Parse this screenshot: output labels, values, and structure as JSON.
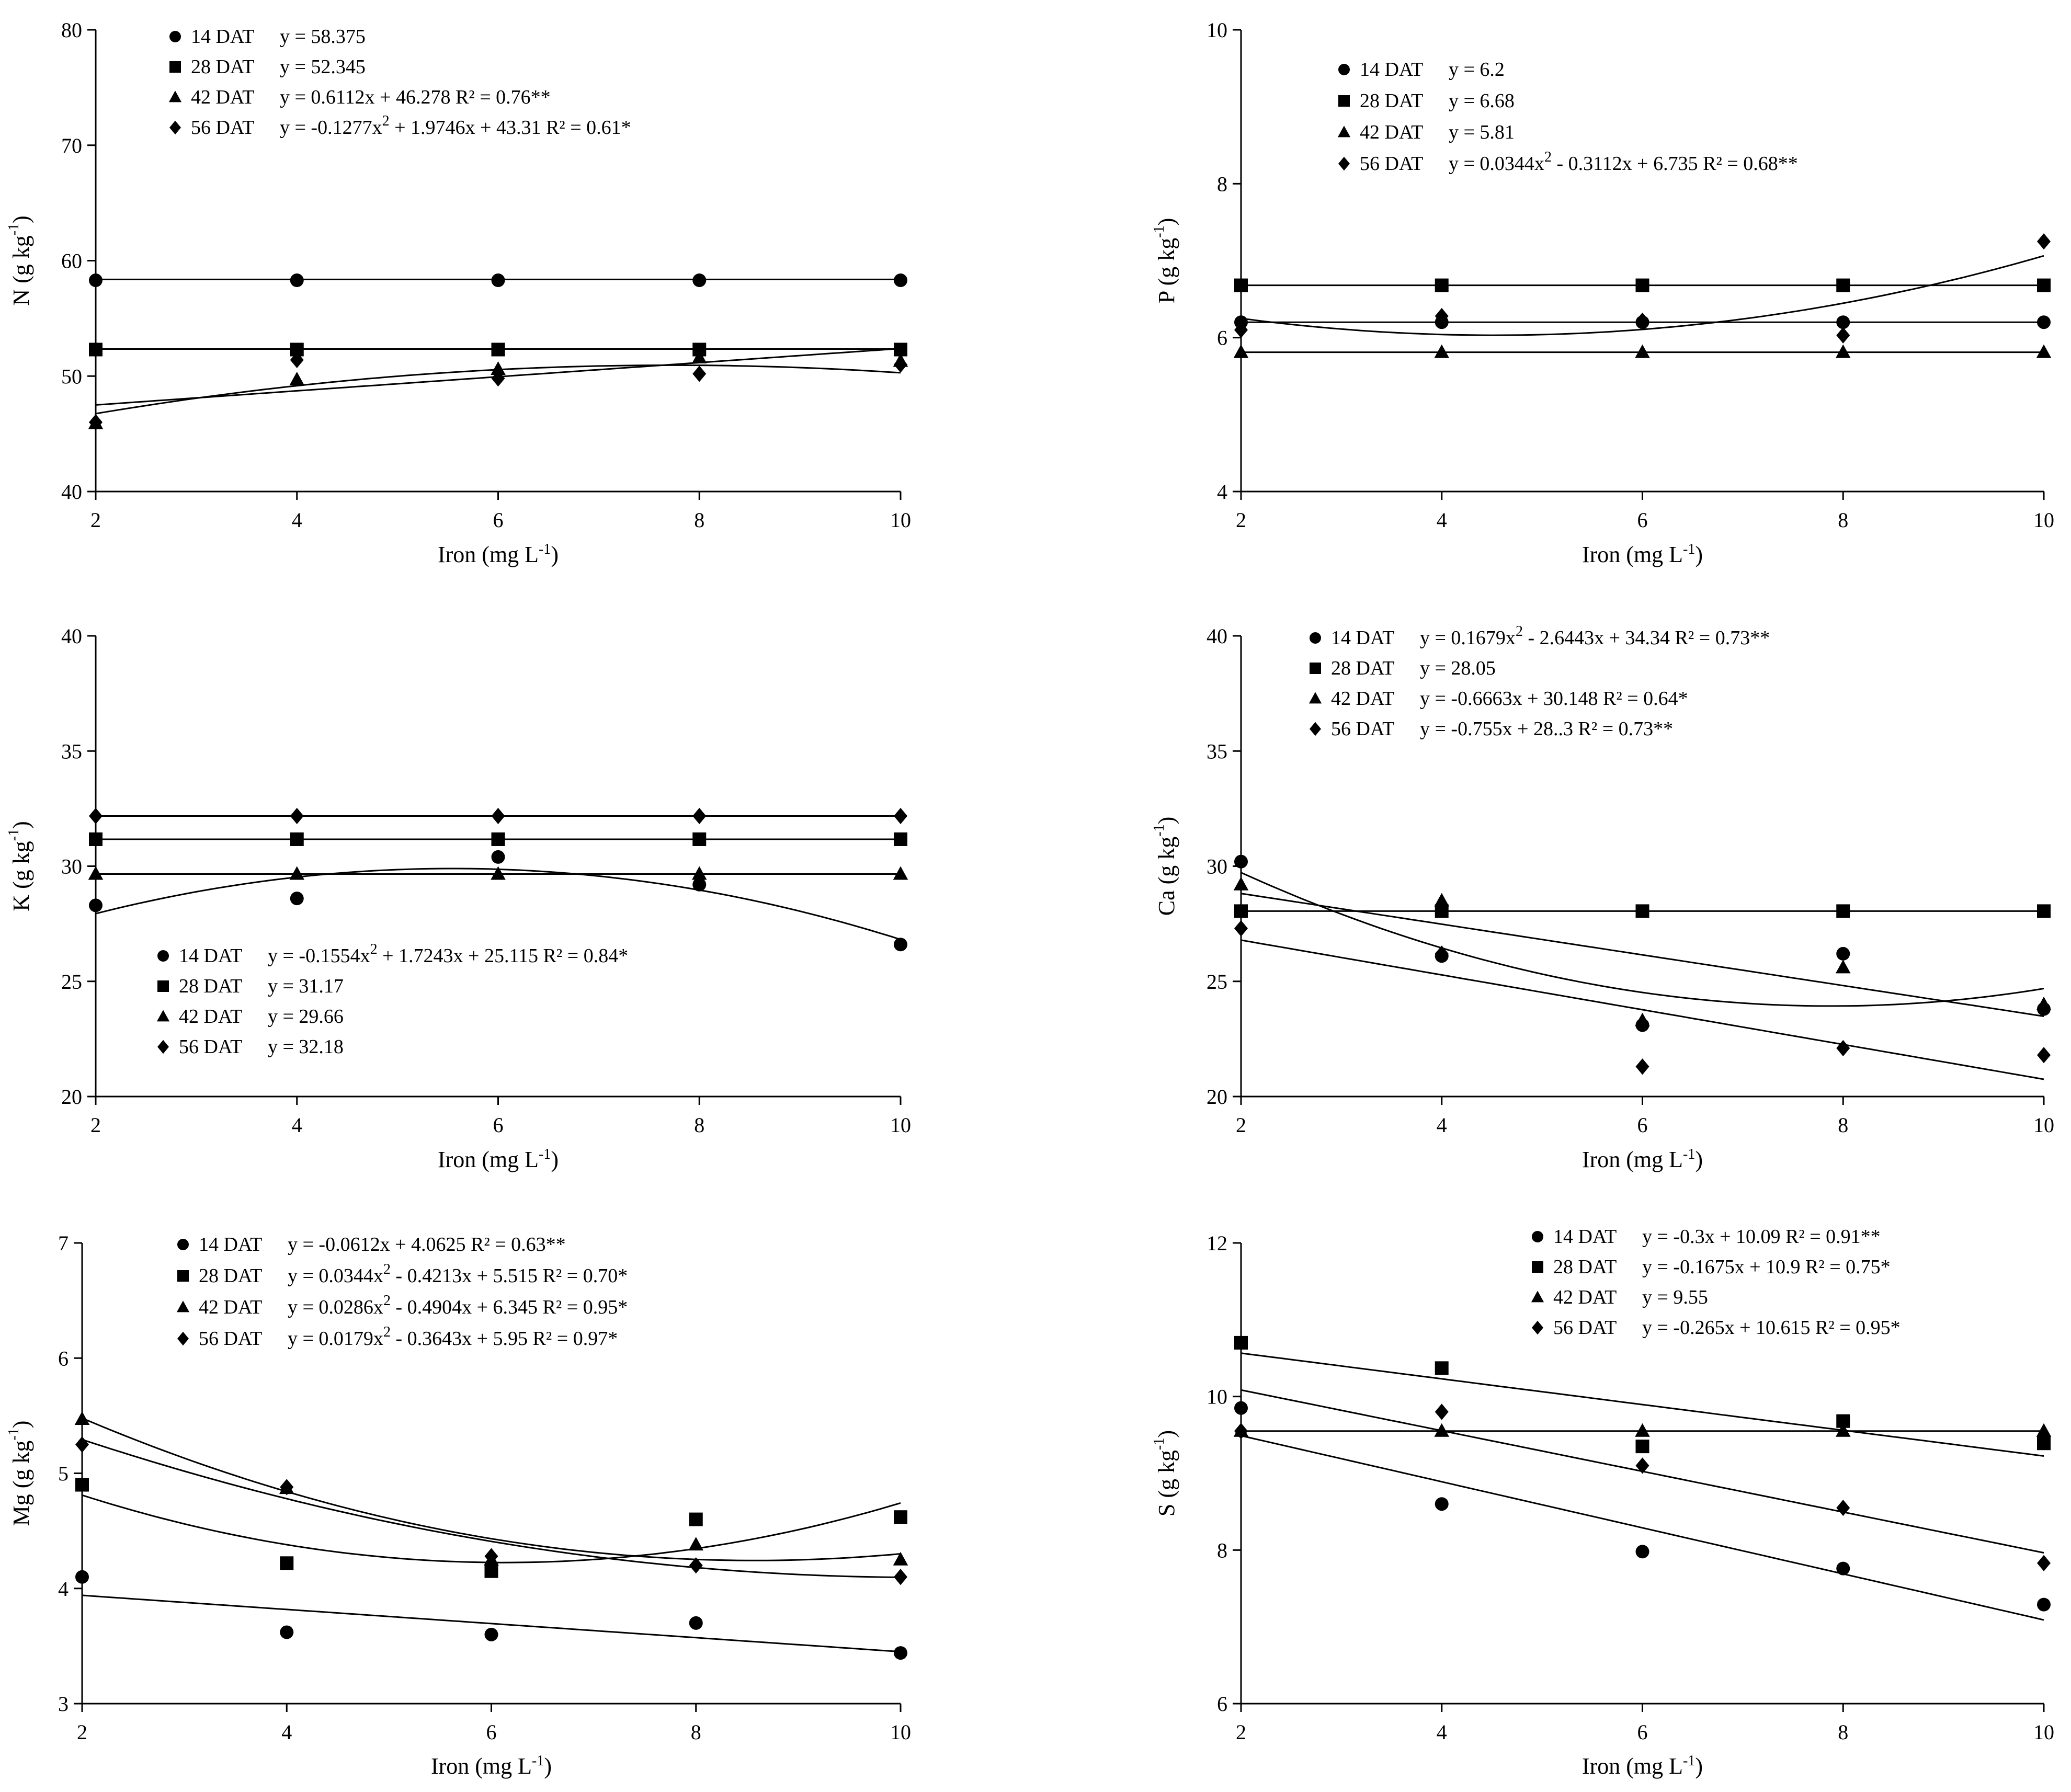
{
  "figure": {
    "colors": {
      "ink": "#000000",
      "background": "#ffffff"
    }
  },
  "chart_data": [
    {
      "id": "N",
      "type": "scatter",
      "ylabel": "N (g kg",
      "ylabel_sup": "-1",
      "ylabel_end": ")",
      "xlabel": "Iron (mg L",
      "xlabel_sup": "-1",
      "xlabel_end": ")",
      "xlim": [
        2,
        10
      ],
      "ylim": [
        40,
        80
      ],
      "xticks": [
        "2",
        "4",
        "6",
        "8",
        "10"
      ],
      "yticks": [
        "40",
        "50",
        "60",
        "70",
        "80"
      ],
      "x": [
        2,
        4,
        6,
        8,
        10
      ],
      "series": [
        {
          "name": "14 DAT",
          "marker": "circle",
          "values": [
            58.3,
            58.3,
            58.3,
            58.3,
            58.3
          ],
          "fit": [
            58.375
          ]
        },
        {
          "name": "28 DAT",
          "marker": "square",
          "values": [
            52.3,
            52.3,
            52.3,
            52.3,
            52.3
          ],
          "fit": [
            52.345
          ]
        },
        {
          "name": "42 DAT",
          "marker": "triangle",
          "values": [
            45.9,
            49.7,
            50.6,
            51.6,
            51.3
          ],
          "fit": [
            46.278,
            0.6112
          ]
        },
        {
          "name": "56 DAT",
          "marker": "diamond",
          "values": [
            46.0,
            51.4,
            49.8,
            50.2,
            51.0
          ],
          "fit": [
            43.31,
            1.9746,
            -0.1277
          ]
        }
      ],
      "legend": [
        {
          "label": "14 DAT",
          "eq": "y = 58.375"
        },
        {
          "label": "28 DAT",
          "eq": "y = 52.345"
        },
        {
          "label": "42 DAT",
          "eq": "y = 0.6112x + 46.278 R² = 0.76**"
        },
        {
          "label": "56 DAT",
          "eq": "y = -0.1277x",
          "eq_sup": "2",
          "eq_end": " + 1.9746x + 43.31 R² = 0.61*"
        }
      ]
    },
    {
      "id": "P",
      "type": "scatter",
      "ylabel": "P (g kg",
      "ylabel_sup": "-1",
      "ylabel_end": ")",
      "xlabel": "Iron (mg L",
      "xlabel_sup": "-1",
      "xlabel_end": ")",
      "xlim": [
        2,
        10
      ],
      "ylim": [
        4,
        10
      ],
      "xticks": [
        "2",
        "4",
        "6",
        "8",
        "10"
      ],
      "yticks": [
        "4",
        "6",
        "8",
        "10"
      ],
      "x": [
        2,
        4,
        6,
        8,
        10
      ],
      "series": [
        {
          "name": "14 DAT",
          "marker": "circle",
          "values": [
            6.2,
            6.2,
            6.2,
            6.2,
            6.2
          ],
          "fit": [
            6.2
          ]
        },
        {
          "name": "28 DAT",
          "marker": "square",
          "values": [
            6.68,
            6.68,
            6.68,
            6.68,
            6.68
          ],
          "fit": [
            6.68
          ]
        },
        {
          "name": "42 DAT",
          "marker": "triangle",
          "values": [
            5.81,
            5.81,
            5.81,
            5.81,
            5.81
          ],
          "fit": [
            5.81
          ]
        },
        {
          "name": "56 DAT",
          "marker": "diamond",
          "values": [
            6.1,
            6.28,
            6.22,
            6.03,
            7.25
          ],
          "fit": [
            6.735,
            -0.3112,
            0.0344
          ]
        }
      ],
      "legend": [
        {
          "label": "14 DAT",
          "eq": "y = 6.2"
        },
        {
          "label": "28 DAT",
          "eq": "y = 6.68"
        },
        {
          "label": "42 DAT",
          "eq": "y = 5.81"
        },
        {
          "label": "56 DAT",
          "eq": "y = 0.0344x",
          "eq_sup": "2",
          "eq_end": " - 0.3112x + 6.735 R² = 0.68**"
        }
      ]
    },
    {
      "id": "K",
      "type": "scatter",
      "ylabel": "K (g kg",
      "ylabel_sup": "-1",
      "ylabel_end": ")",
      "xlabel": "Iron (mg L",
      "xlabel_sup": "-1",
      "xlabel_end": ")",
      "xlim": [
        2,
        10
      ],
      "ylim": [
        20,
        40
      ],
      "xticks": [
        "2",
        "4",
        "6",
        "8",
        "10"
      ],
      "yticks": [
        "20",
        "25",
        "30",
        "35",
        "40"
      ],
      "x": [
        2,
        4,
        6,
        8,
        10
      ],
      "series": [
        {
          "name": "14 DAT",
          "marker": "circle",
          "values": [
            28.3,
            28.6,
            30.4,
            29.2,
            26.6
          ],
          "fit": [
            25.115,
            1.7243,
            -0.1554
          ]
        },
        {
          "name": "28 DAT",
          "marker": "square",
          "values": [
            31.17,
            31.17,
            31.17,
            31.17,
            31.17
          ],
          "fit": [
            31.17
          ]
        },
        {
          "name": "42 DAT",
          "marker": "triangle",
          "values": [
            29.66,
            29.66,
            29.66,
            29.66,
            29.66
          ],
          "fit": [
            29.66
          ]
        },
        {
          "name": "56 DAT",
          "marker": "diamond",
          "values": [
            32.18,
            32.18,
            32.18,
            32.18,
            32.18
          ],
          "fit": [
            32.18
          ]
        }
      ],
      "legend": [
        {
          "label": "14 DAT",
          "eq": "y = -0.1554x",
          "eq_sup": "2",
          "eq_end": " + 1.7243x + 25.115 R² = 0.84*"
        },
        {
          "label": "28 DAT",
          "eq": "y = 31.17"
        },
        {
          "label": "42 DAT",
          "eq": "y = 29.66"
        },
        {
          "label": "56 DAT",
          "eq": "y = 32.18"
        }
      ]
    },
    {
      "id": "Ca",
      "type": "scatter",
      "ylabel": "Ca (g kg",
      "ylabel_sup": "-1",
      "ylabel_end": ")",
      "xlabel": "Iron (mg L",
      "xlabel_sup": "-1",
      "xlabel_end": ")",
      "xlim": [
        2,
        10
      ],
      "ylim": [
        20,
        40
      ],
      "xticks": [
        "2",
        "4",
        "6",
        "8",
        "10"
      ],
      "yticks": [
        "20",
        "25",
        "30",
        "35",
        "40"
      ],
      "x": [
        2,
        4,
        6,
        8,
        10
      ],
      "series": [
        {
          "name": "14 DAT",
          "marker": "circle",
          "values": [
            30.2,
            26.1,
            23.1,
            26.2,
            23.8
          ],
          "fit": [
            34.34,
            -2.6443,
            0.1679
          ]
        },
        {
          "name": "28 DAT",
          "marker": "square",
          "values": [
            28.05,
            28.05,
            28.05,
            28.05,
            28.05
          ],
          "fit": [
            28.05
          ]
        },
        {
          "name": "42 DAT",
          "marker": "triangle",
          "values": [
            29.2,
            28.5,
            23.3,
            25.6,
            24.0
          ],
          "fit": [
            30.148,
            -0.6663
          ]
        },
        {
          "name": "56 DAT",
          "marker": "diamond",
          "values": [
            27.3,
            26.2,
            21.3,
            22.1,
            21.8
          ],
          "fit": [
            28.3,
            -0.755
          ]
        }
      ],
      "legend": [
        {
          "label": "14 DAT",
          "eq": "y = 0.1679x",
          "eq_sup": "2",
          "eq_end": " - 2.6443x + 34.34 R² = 0.73**"
        },
        {
          "label": "28 DAT",
          "eq": "y = 28.05"
        },
        {
          "label": "42 DAT",
          "eq": "y = -0.6663x + 30.148 R² = 0.64*"
        },
        {
          "label": "56 DAT",
          "eq": "y = -0.755x + 28..3 R² = 0.73**"
        }
      ]
    },
    {
      "id": "Mg",
      "type": "scatter",
      "ylabel": "Mg (g kg",
      "ylabel_sup": "-1",
      "ylabel_end": ")",
      "xlabel": "Iron (mg L",
      "xlabel_sup": "-1",
      "xlabel_end": ")",
      "xlim": [
        2,
        10
      ],
      "ylim": [
        3,
        7
      ],
      "xticks": [
        "2",
        "4",
        "6",
        "8",
        "10"
      ],
      "yticks": [
        "3",
        "4",
        "5",
        "6",
        "7"
      ],
      "x": [
        2,
        4,
        6,
        8,
        10
      ],
      "series": [
        {
          "name": "14 DAT",
          "marker": "circle",
          "values": [
            4.1,
            3.62,
            3.6,
            3.7,
            3.44
          ],
          "fit": [
            4.0625,
            -0.0612
          ]
        },
        {
          "name": "28 DAT",
          "marker": "square",
          "values": [
            4.9,
            4.22,
            4.15,
            4.6,
            4.62
          ],
          "fit": [
            5.515,
            -0.4213,
            0.0344
          ]
        },
        {
          "name": "42 DAT",
          "marker": "triangle",
          "values": [
            5.47,
            4.87,
            4.25,
            4.38,
            4.25
          ],
          "fit": [
            6.345,
            -0.4904,
            0.0286
          ]
        },
        {
          "name": "56 DAT",
          "marker": "diamond",
          "values": [
            5.25,
            4.88,
            4.28,
            4.2,
            4.1
          ],
          "fit": [
            5.95,
            -0.3643,
            0.0179
          ]
        }
      ],
      "legend": [
        {
          "label": "14 DAT",
          "eq": "y = -0.0612x + 4.0625 R² = 0.63**"
        },
        {
          "label": "28 DAT",
          "eq": "y = 0.0344x",
          "eq_sup": "2",
          "eq_end": " - 0.4213x + 5.515 R² = 0.70*"
        },
        {
          "label": "42 DAT",
          "eq": "y = 0.0286x",
          "eq_sup": "2",
          "eq_end": " - 0.4904x + 6.345 R² = 0.95*"
        },
        {
          "label": "56 DAT",
          "eq": "y = 0.0179x",
          "eq_sup": "2",
          "eq_end": " - 0.3643x + 5.95 R² = 0.97*"
        }
      ]
    },
    {
      "id": "S",
      "type": "scatter",
      "ylabel": "S (g kg",
      "ylabel_sup": "-1",
      "ylabel_end": ")",
      "xlabel": "Iron (mg L",
      "xlabel_sup": "-1",
      "xlabel_end": ")",
      "xlim": [
        2,
        10
      ],
      "ylim": [
        6,
        12
      ],
      "xticks": [
        "2",
        "4",
        "6",
        "8",
        "10"
      ],
      "yticks": [
        "6",
        "8",
        "10",
        "12"
      ],
      "x": [
        2,
        4,
        6,
        8,
        10
      ],
      "series": [
        {
          "name": "14 DAT",
          "marker": "circle",
          "values": [
            9.85,
            8.6,
            7.98,
            7.76,
            7.29
          ],
          "fit": [
            10.09,
            -0.3
          ]
        },
        {
          "name": "28 DAT",
          "marker": "square",
          "values": [
            10.7,
            10.37,
            9.35,
            9.68,
            9.39
          ],
          "fit": [
            10.9,
            -0.1675
          ]
        },
        {
          "name": "42 DAT",
          "marker": "triangle",
          "values": [
            9.55,
            9.55,
            9.55,
            9.55,
            9.55
          ],
          "fit": [
            9.55
          ]
        },
        {
          "name": "56 DAT",
          "marker": "diamond",
          "values": [
            9.55,
            9.8,
            9.1,
            8.55,
            7.83
          ],
          "fit": [
            10.615,
            -0.265
          ]
        }
      ],
      "legend": [
        {
          "label": "14 DAT",
          "eq": "y = -0.3x + 10.09 R² = 0.91**"
        },
        {
          "label": "28 DAT",
          "eq": "y = -0.1675x + 10.9 R² = 0.75*"
        },
        {
          "label": "42 DAT",
          "eq": "y = 9.55"
        },
        {
          "label": "56 DAT",
          "eq": "y = -0.265x + 10.615 R² = 0.95*"
        }
      ]
    }
  ]
}
